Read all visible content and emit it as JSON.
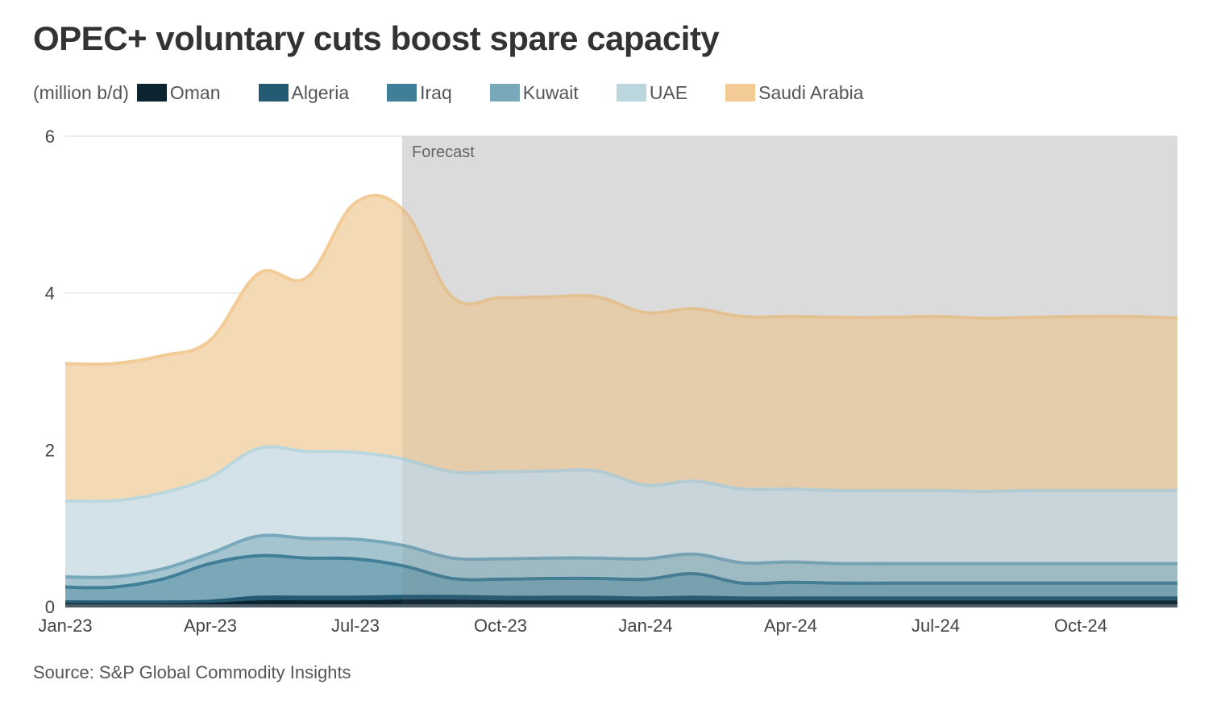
{
  "title": "OPEC+ voluntary cuts boost spare capacity",
  "unit_label": "(million b/d)",
  "source": "Source: S&P Global Commodity Insights",
  "legend": [
    {
      "name": "Oman",
      "color": "#0c2430"
    },
    {
      "name": "Algeria",
      "color": "#245a72"
    },
    {
      "name": "Iraq",
      "color": "#417f98"
    },
    {
      "name": "Kuwait",
      "color": "#78a9bb"
    },
    {
      "name": "UAE",
      "color": "#bcd6de"
    },
    {
      "name": "Saudi Arabia",
      "color": "#f2cb97"
    }
  ],
  "chart_data": {
    "type": "area",
    "stacked": true,
    "title": "OPEC+ voluntary cuts boost spare capacity",
    "ylabel": "million b/d",
    "xlabel": "",
    "ylim": [
      0,
      6
    ],
    "yticks": [
      "0",
      "2",
      "4",
      "6"
    ],
    "grid": true,
    "legend_position": "top-left",
    "x": [
      "Jan-23",
      "Feb-23",
      "Mar-23",
      "Apr-23",
      "May-23",
      "Jun-23",
      "Jul-23",
      "Aug-23",
      "Sep-23",
      "Oct-23",
      "Nov-23",
      "Dec-23",
      "Jan-24",
      "Feb-24",
      "Mar-24",
      "Apr-24",
      "May-24",
      "Jun-24",
      "Jul-24",
      "Aug-24",
      "Sep-24",
      "Oct-24",
      "Nov-24",
      "Dec-24"
    ],
    "xticks": [
      "Jan-23",
      "Apr-23",
      "Jul-23",
      "Oct-23",
      "Jan-24",
      "Apr-24",
      "Jul-24",
      "Oct-24"
    ],
    "forecast_start": "Aug-23",
    "forecast_label": "Forecast",
    "series": [
      {
        "name": "Oman",
        "color": "#0c2430",
        "values": [
          0.02,
          0.02,
          0.02,
          0.03,
          0.06,
          0.06,
          0.06,
          0.07,
          0.07,
          0.06,
          0.06,
          0.06,
          0.06,
          0.06,
          0.06,
          0.06,
          0.06,
          0.06,
          0.06,
          0.06,
          0.06,
          0.06,
          0.06,
          0.06
        ]
      },
      {
        "name": "Algeria",
        "color": "#245a72",
        "values": [
          0.04,
          0.04,
          0.04,
          0.04,
          0.06,
          0.06,
          0.06,
          0.06,
          0.06,
          0.06,
          0.06,
          0.06,
          0.05,
          0.06,
          0.05,
          0.05,
          0.05,
          0.05,
          0.05,
          0.05,
          0.05,
          0.05,
          0.05,
          0.05
        ]
      },
      {
        "name": "Iraq",
        "color": "#417f98",
        "values": [
          0.19,
          0.19,
          0.29,
          0.48,
          0.53,
          0.5,
          0.49,
          0.39,
          0.23,
          0.23,
          0.24,
          0.24,
          0.24,
          0.3,
          0.19,
          0.2,
          0.19,
          0.19,
          0.19,
          0.19,
          0.19,
          0.19,
          0.19,
          0.19
        ]
      },
      {
        "name": "Kuwait",
        "color": "#78a9bb",
        "values": [
          0.13,
          0.13,
          0.13,
          0.13,
          0.25,
          0.25,
          0.25,
          0.26,
          0.26,
          0.26,
          0.26,
          0.26,
          0.26,
          0.25,
          0.26,
          0.26,
          0.25,
          0.25,
          0.25,
          0.25,
          0.25,
          0.25,
          0.25,
          0.25
        ]
      },
      {
        "name": "UAE",
        "color": "#bcd6de",
        "values": [
          0.97,
          0.97,
          0.97,
          0.97,
          1.12,
          1.11,
          1.11,
          1.1,
          1.1,
          1.11,
          1.11,
          1.11,
          0.94,
          0.93,
          0.94,
          0.93,
          0.93,
          0.93,
          0.93,
          0.92,
          0.93,
          0.93,
          0.93,
          0.93
        ]
      },
      {
        "name": "Saudi Arabia",
        "color": "#f2cb97",
        "values": [
          1.75,
          1.75,
          1.75,
          1.75,
          2.23,
          2.22,
          3.18,
          3.17,
          2.23,
          2.22,
          2.22,
          2.22,
          2.2,
          2.2,
          2.2,
          2.2,
          2.21,
          2.21,
          2.22,
          2.21,
          2.21,
          2.22,
          2.22,
          2.2
        ]
      }
    ]
  }
}
